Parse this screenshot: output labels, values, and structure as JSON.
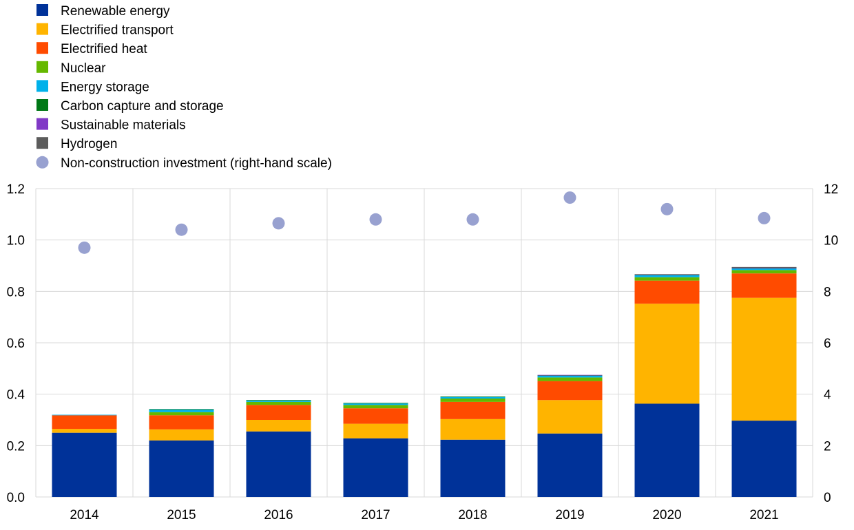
{
  "chart_data": {
    "type": "bar",
    "stacked": true,
    "categories": [
      "2014",
      "2015",
      "2016",
      "2017",
      "2018",
      "2019",
      "2020",
      "2021"
    ],
    "y_left": {
      "ylim": [
        0,
        1.2
      ],
      "ticks": [
        "0.0",
        "0.2",
        "0.4",
        "0.6",
        "0.8",
        "1.0",
        "1.2"
      ]
    },
    "y_right": {
      "ylim": [
        0,
        12
      ],
      "ticks": [
        "0",
        "2",
        "4",
        "6",
        "8",
        "10",
        "12"
      ]
    },
    "grid": true,
    "legend_position": "top-left",
    "series": [
      {
        "name": "Renewable energy",
        "color": "#003299",
        "values": [
          0.25,
          0.22,
          0.255,
          0.228,
          0.223,
          0.247,
          0.363,
          0.297
        ]
      },
      {
        "name": "Electrified transport",
        "color": "#FFB400",
        "values": [
          0.015,
          0.043,
          0.045,
          0.057,
          0.08,
          0.13,
          0.389,
          0.478
        ]
      },
      {
        "name": "Electrified heat",
        "color": "#FF4B00",
        "values": [
          0.053,
          0.055,
          0.058,
          0.06,
          0.067,
          0.074,
          0.09,
          0.095
        ]
      },
      {
        "name": "Nuclear",
        "color": "#65B800",
        "values": [
          0.0,
          0.012,
          0.012,
          0.013,
          0.013,
          0.014,
          0.013,
          0.013
        ]
      },
      {
        "name": "Energy storage",
        "color": "#00B1EA",
        "values": [
          0.002,
          0.01,
          0.005,
          0.006,
          0.006,
          0.007,
          0.008,
          0.006
        ]
      },
      {
        "name": "Carbon capture and storage",
        "color": "#007816",
        "values": [
          0.0,
          0.002,
          0.002,
          0.002,
          0.002,
          0.002,
          0.002,
          0.002
        ]
      },
      {
        "name": "Sustainable materials",
        "color": "#8139C6",
        "values": [
          0.0,
          0.0,
          0.0,
          0.0,
          0.0,
          0.001,
          0.001,
          0.001
        ]
      },
      {
        "name": "Hydrogen",
        "color": "#5C5C5C",
        "values": [
          0.0,
          0.0,
          0.0,
          0.0,
          0.0,
          0.0,
          0.001,
          0.003
        ]
      }
    ],
    "scatter_series": {
      "name": "Non-construction investment (right-hand scale)",
      "color": "#98A1D0",
      "axis": "right",
      "values": [
        9.7,
        10.4,
        10.65,
        10.8,
        10.8,
        11.65,
        11.2,
        10.85
      ]
    }
  }
}
